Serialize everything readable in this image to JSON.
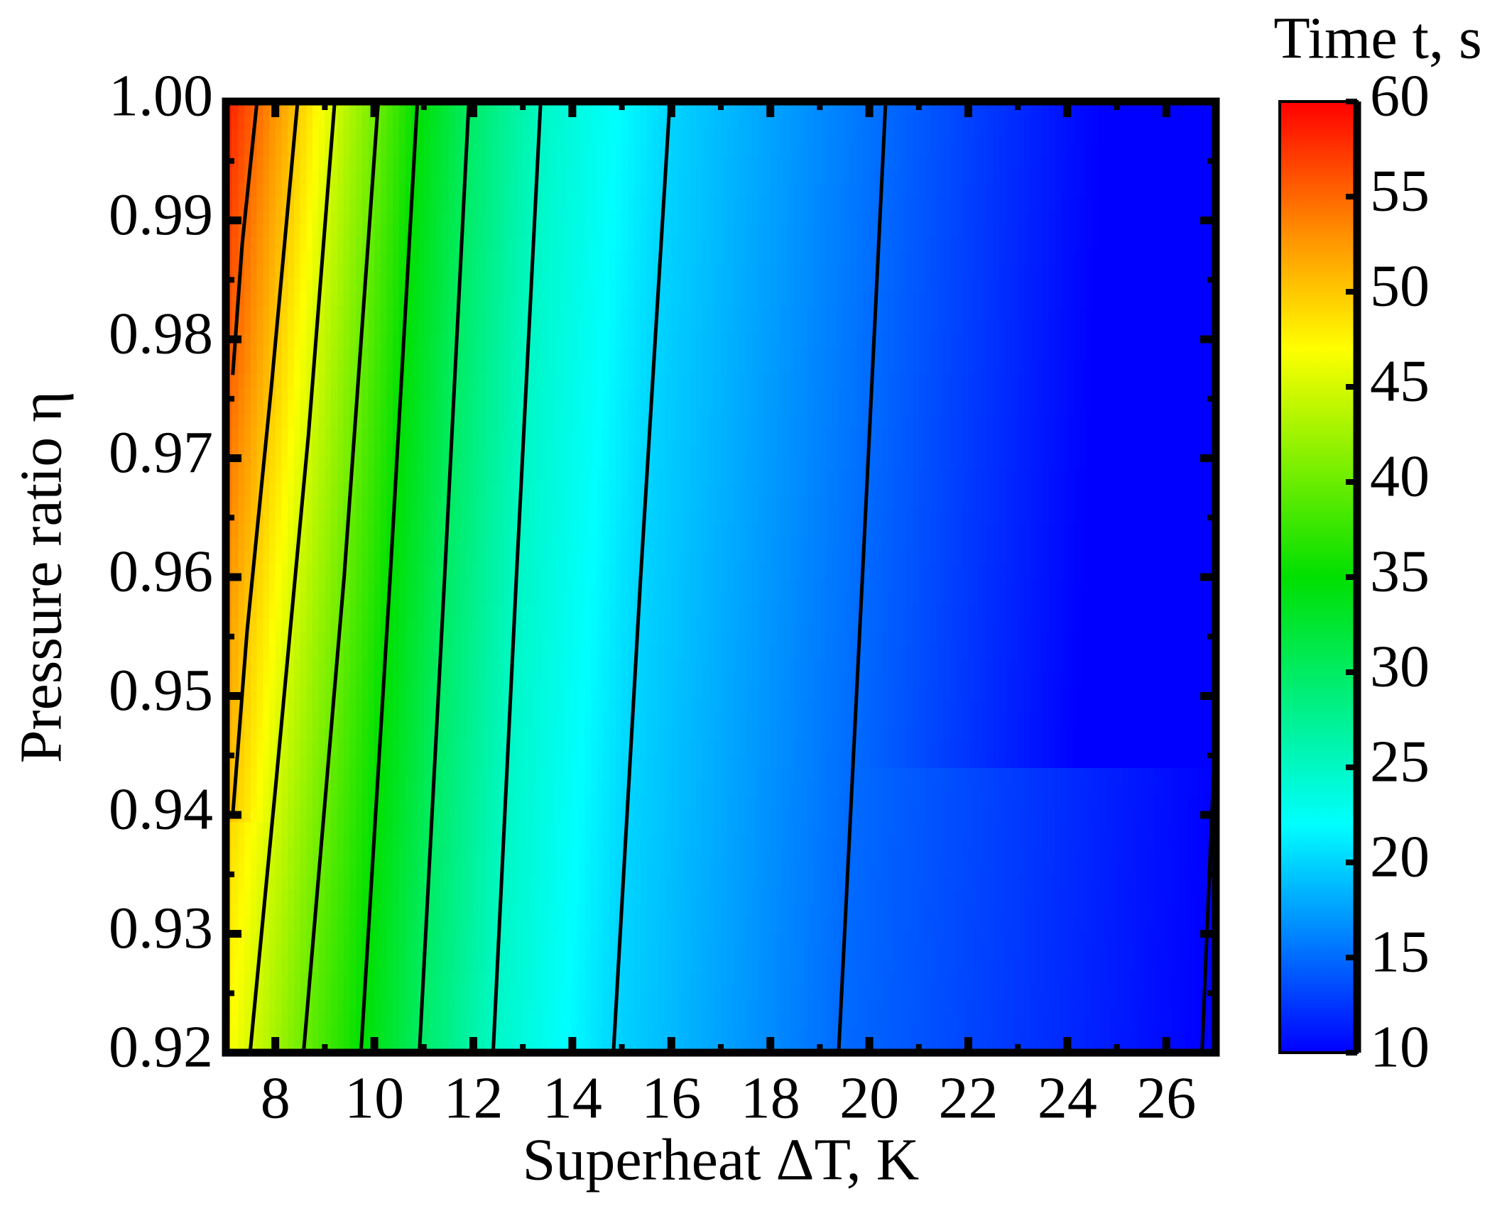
{
  "chart_data": {
    "type": "contour",
    "x_label": "Superheat ΔT, K",
    "y_label": "Pressure ratio η",
    "colorbar_label": "Time t, s",
    "xlim": [
      7,
      27
    ],
    "ylim": [
      0.92,
      1
    ],
    "xticks": [
      8,
      10,
      12,
      14,
      16,
      18,
      20,
      22,
      24,
      26
    ],
    "yticks": [
      0.92,
      0.93,
      0.94,
      0.95,
      0.96,
      0.97,
      0.98,
      0.99,
      {
        "value": 1,
        "label": "1.00"
      }
    ],
    "clim": [
      10,
      60
    ],
    "cticks": [
      10,
      15,
      20,
      25,
      30,
      35,
      40,
      45,
      50,
      55,
      60
    ],
    "colorscale": [
      [
        10,
        "#0000ff"
      ],
      [
        16,
        "#0080ff"
      ],
      [
        22,
        "#00ffff"
      ],
      [
        35,
        "#00e000"
      ],
      [
        47,
        "#ffff00"
      ],
      [
        53,
        "#ff9000"
      ],
      [
        60,
        "#ff0000"
      ]
    ],
    "contours": [
      {
        "level": 55,
        "points": [
          [
            7.63,
            1
          ],
          [
            7.33,
            0.988
          ],
          [
            7.14,
            0.977
          ]
        ]
      },
      {
        "level": 50,
        "points": [
          [
            8.45,
            1
          ],
          [
            7.92,
            0.976
          ],
          [
            7.43,
            0.9555
          ],
          [
            7.14,
            0.94
          ]
        ]
      },
      {
        "level": 45,
        "points": [
          [
            9.2,
            1
          ],
          [
            8.67,
            0.972
          ],
          [
            8.02,
            0.943
          ],
          [
            7.49,
            0.92
          ]
        ]
      },
      {
        "level": 40,
        "points": [
          [
            10.08,
            1
          ],
          [
            9.39,
            0.96
          ],
          [
            8.57,
            0.92
          ]
        ]
      },
      {
        "level": 35,
        "points": [
          [
            10.87,
            1
          ],
          [
            10.32,
            0.96
          ],
          [
            9.73,
            0.92
          ]
        ]
      },
      {
        "level": 30,
        "points": [
          [
            11.91,
            1
          ],
          [
            11.42,
            0.96
          ],
          [
            10.91,
            0.92
          ]
        ]
      },
      {
        "level": 25,
        "points": [
          [
            13.36,
            1
          ],
          [
            12.87,
            0.96
          ],
          [
            12.4,
            0.92
          ]
        ]
      },
      {
        "level": 20,
        "points": [
          [
            15.97,
            1
          ],
          [
            15.38,
            0.96
          ],
          [
            14.83,
            0.92
          ]
        ]
      },
      {
        "level": 15,
        "points": [
          [
            20.33,
            1
          ],
          [
            19.86,
            0.96
          ],
          [
            19.38,
            0.92
          ]
        ]
      },
      {
        "level": 10,
        "points": [
          [
            26.96,
            0.944
          ],
          [
            26.72,
            0.92
          ]
        ]
      }
    ]
  }
}
